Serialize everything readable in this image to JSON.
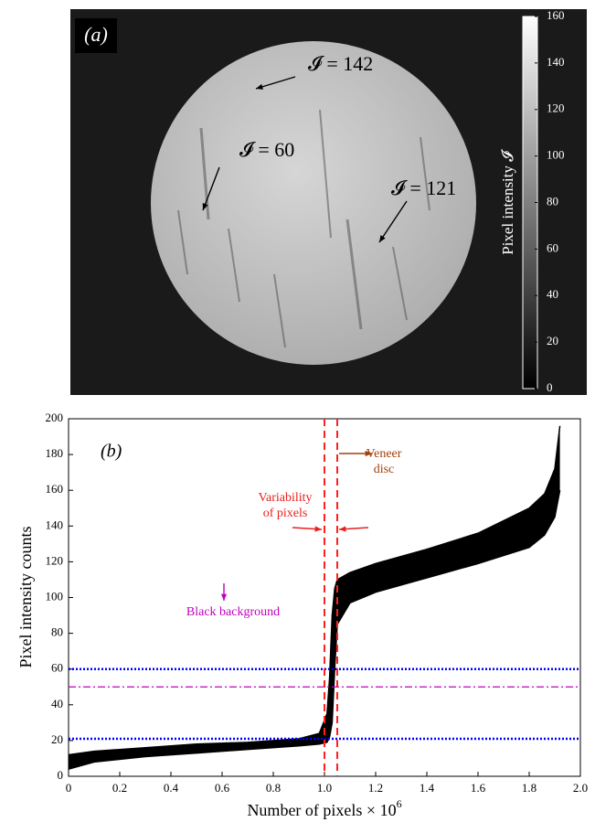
{
  "chart_data": [
    {
      "type": "image",
      "title": "(a)",
      "colorbar": {
        "label": "Pixel intensity 𝓘",
        "lim": [
          0,
          160
        ],
        "ticks": [
          0,
          20,
          40,
          60,
          80,
          100,
          120,
          140,
          160
        ]
      },
      "annotations": [
        "𝓘 = 142",
        "𝓘 = 60",
        "𝓘 = 121"
      ]
    },
    {
      "type": "line",
      "title": "(b)",
      "xlabel": "Number of pixels × 10",
      "xlabel_exponent": "6",
      "ylabel": "Pixel intensity counts",
      "xlim": [
        0,
        2
      ],
      "ylim": [
        0,
        200
      ],
      "xticks": [
        0,
        0.2,
        0.4,
        0.6,
        0.8,
        {
          "value": 1,
          "label": "1.0"
        },
        1.2,
        1.4,
        1.6,
        1.8,
        {
          "value": 2,
          "label": "2.0"
        }
      ],
      "yticks": [
        0,
        20,
        40,
        60,
        80,
        100,
        120,
        140,
        160,
        180,
        200
      ],
      "x": [
        0,
        0.1,
        0.3,
        0.5,
        0.7,
        0.9,
        0.98,
        1.01,
        1.02,
        1.03,
        1.04,
        1.05,
        1.1,
        1.2,
        1.4,
        1.6,
        1.8,
        1.86,
        1.9,
        1.92
      ],
      "series": [
        {
          "color": "#000000",
          "values": [
            12,
            14,
            16,
            18,
            19,
            21,
            24,
            35,
            55,
            90,
            105,
            110,
            114,
            119,
            127,
            136,
            150,
            158,
            172,
            196
          ]
        },
        {
          "color": "#000000",
          "values": [
            4,
            8,
            11,
            13,
            15,
            17,
            18,
            19,
            22,
            30,
            60,
            85,
            97,
            103,
            111,
            119,
            128,
            135,
            145,
            160
          ]
        }
      ],
      "hlines": [
        {
          "value": 60,
          "color": "#0000ff",
          "style": "dotted"
        },
        {
          "value": 50,
          "color": "#c000c0",
          "style": "dashdot"
        },
        {
          "value": 21,
          "color": "#0000ff",
          "style": "dotted"
        }
      ],
      "vlines": [
        {
          "value": 1.0,
          "color": "#ff2020",
          "style": "dashed"
        },
        {
          "value": 1.05,
          "color": "#ff2020",
          "style": "dashed"
        }
      ],
      "annotations": [
        "Variability",
        "of pixels",
        "Veneer",
        "disc",
        "Black background"
      ]
    }
  ]
}
